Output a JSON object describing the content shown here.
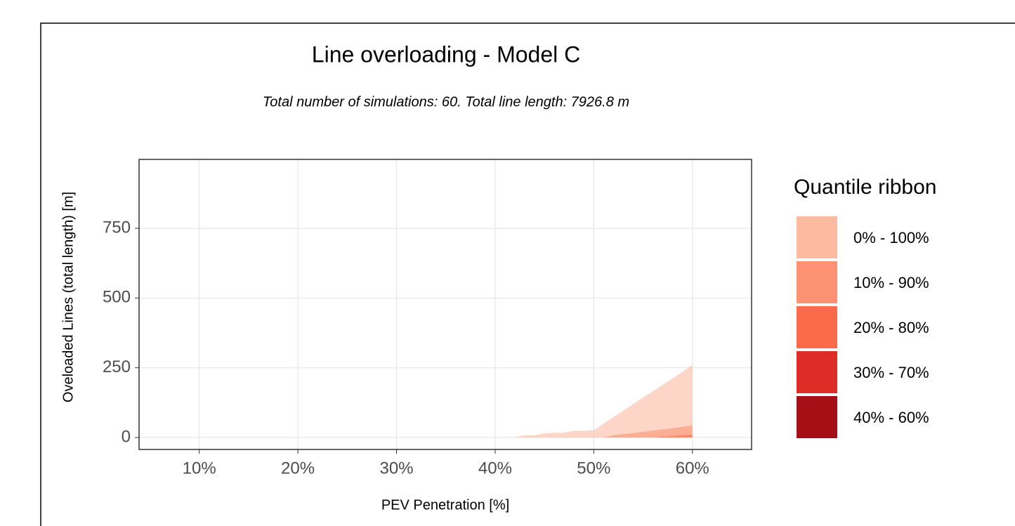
{
  "chart_data": {
    "type": "ribbon",
    "title": "Line overloading - Model C",
    "subtitle": "Total number of simulations: 60. Total line length: 7926.8 m",
    "x_label": "PEV Penetration [%]",
    "y_label": "Oveloaded Lines (total length) [m]",
    "legend_title": "Quantile ribbon",
    "legend_position": "right",
    "grid": true,
    "alpha": 0.6,
    "xlim": [
      3.9,
      66
    ],
    "ylim": [
      -43,
      997
    ],
    "xticks": [
      {
        "value": 10,
        "label": "10%"
      },
      {
        "value": 20,
        "label": "20%"
      },
      {
        "value": 30,
        "label": "30%"
      },
      {
        "value": 40,
        "label": "40%"
      },
      {
        "value": 50,
        "label": "50%"
      },
      {
        "value": 60,
        "label": "60%"
      }
    ],
    "yticks": [
      0,
      250,
      500,
      750
    ],
    "x": [
      40,
      41,
      42,
      43,
      44,
      45,
      46,
      47,
      48,
      49,
      50,
      51,
      52,
      53,
      54,
      55,
      56,
      57,
      58,
      59,
      60
    ],
    "series": [
      {
        "name": "0% - 100%",
        "color": "#FCBBA1",
        "lower": [
          0,
          0,
          0,
          0,
          0,
          0,
          0,
          0,
          0,
          0,
          0,
          0,
          0,
          0,
          0,
          0,
          0,
          0,
          0,
          0,
          0
        ],
        "upper": [
          0,
          0,
          0,
          8,
          8,
          15,
          17,
          17,
          24,
          24,
          26,
          50,
          73,
          96,
          120,
          143,
          166,
          189,
          212,
          236,
          260
        ]
      },
      {
        "name": "10% - 90%",
        "color": "#FC9272",
        "lower": [
          0,
          0,
          0,
          0,
          0,
          0,
          0,
          0,
          0,
          0,
          0,
          0,
          0,
          0,
          0,
          0,
          0,
          0,
          0,
          0,
          0
        ],
        "upper": [
          0,
          0,
          0,
          0,
          0,
          0,
          0,
          0,
          0,
          0,
          0,
          0,
          8,
          12,
          16,
          20,
          25,
          29,
          33,
          38,
          43
        ]
      },
      {
        "name": "20% - 80%",
        "color": "#FB6A4A",
        "lower": [
          0,
          0,
          0,
          0,
          0,
          0,
          0,
          0,
          0,
          0,
          0,
          0,
          0,
          0,
          0,
          0,
          0,
          0,
          0,
          0,
          0
        ],
        "upper": [
          0,
          0,
          0,
          0,
          0,
          0,
          0,
          0,
          0,
          0,
          0,
          0,
          0,
          0,
          0,
          0,
          0,
          3,
          5,
          8,
          10
        ]
      },
      {
        "name": "30% - 70%",
        "color": "#DE2D26",
        "lower": [
          0,
          0,
          0,
          0,
          0,
          0,
          0,
          0,
          0,
          0,
          0,
          0,
          0,
          0,
          0,
          0,
          0,
          0,
          0,
          0,
          0
        ],
        "upper": [
          0,
          0,
          0,
          0,
          0,
          0,
          0,
          0,
          0,
          0,
          0,
          0,
          0,
          0,
          0,
          0,
          0,
          0,
          0,
          0,
          0
        ]
      },
      {
        "name": "40% - 60%",
        "color": "#A50F15",
        "lower": [
          0,
          0,
          0,
          0,
          0,
          0,
          0,
          0,
          0,
          0,
          0,
          0,
          0,
          0,
          0,
          0,
          0,
          0,
          0,
          0,
          0
        ],
        "upper": [
          0,
          0,
          0,
          0,
          0,
          0,
          0,
          0,
          0,
          0,
          0,
          0,
          0,
          0,
          0,
          0,
          0,
          0,
          0,
          0,
          0
        ]
      }
    ]
  }
}
